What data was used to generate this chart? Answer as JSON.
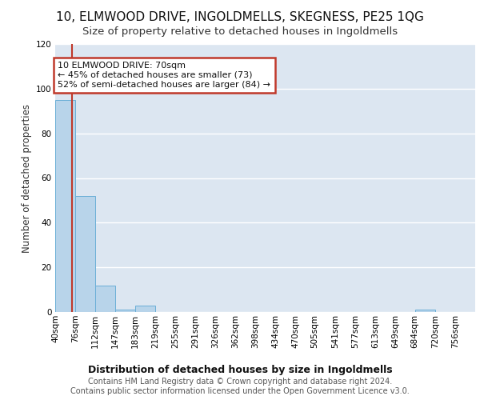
{
  "title1": "10, ELMWOOD DRIVE, INGOLDMELLS, SKEGNESS, PE25 1QG",
  "title2": "Size of property relative to detached houses in Ingoldmells",
  "xlabel": "Distribution of detached houses by size in Ingoldmells",
  "ylabel": "Number of detached properties",
  "bin_labels": [
    "40sqm",
    "76sqm",
    "112sqm",
    "147sqm",
    "183sqm",
    "219sqm",
    "255sqm",
    "291sqm",
    "326sqm",
    "362sqm",
    "398sqm",
    "434sqm",
    "470sqm",
    "505sqm",
    "541sqm",
    "577sqm",
    "613sqm",
    "649sqm",
    "684sqm",
    "720sqm",
    "756sqm"
  ],
  "bin_edges": [
    40,
    76,
    112,
    147,
    183,
    219,
    255,
    291,
    326,
    362,
    398,
    434,
    470,
    505,
    541,
    577,
    613,
    649,
    684,
    720,
    756,
    792
  ],
  "bar_values": [
    95,
    52,
    12,
    1,
    3,
    0,
    0,
    0,
    0,
    0,
    0,
    0,
    0,
    0,
    0,
    0,
    0,
    0,
    1,
    0,
    0
  ],
  "bar_color": "#b8d4ea",
  "bar_edge_color": "#6aaed6",
  "property_size": 70,
  "vline_color": "#c0392b",
  "annotation_line1": "10 ELMWOOD DRIVE: 70sqm",
  "annotation_line2": "← 45% of detached houses are smaller (73)",
  "annotation_line3": "52% of semi-detached houses are larger (84) →",
  "annotation_box_color": "#ffffff",
  "annotation_box_edge_color": "#c0392b",
  "ylim": [
    0,
    120
  ],
  "yticks": [
    0,
    20,
    40,
    60,
    80,
    100,
    120
  ],
  "background_color": "#ffffff",
  "grid_color": "#dce6f1",
  "footer_text": "Contains HM Land Registry data © Crown copyright and database right 2024.\nContains public sector information licensed under the Open Government Licence v3.0.",
  "title1_fontsize": 11,
  "title2_fontsize": 9.5,
  "xlabel_fontsize": 9,
  "ylabel_fontsize": 8.5,
  "tick_fontsize": 7.5,
  "annotation_fontsize": 8,
  "footer_fontsize": 7
}
